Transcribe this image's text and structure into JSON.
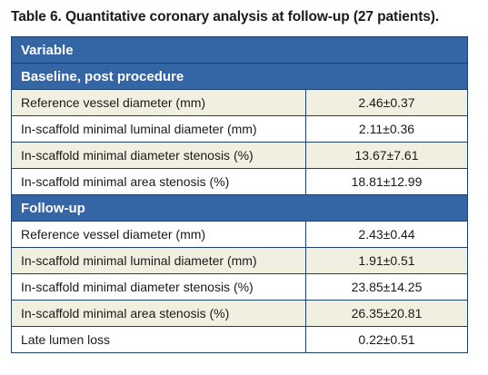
{
  "caption": "Table 6. Quantitative coronary analysis at follow-up (27 patients).",
  "table": {
    "header": "Variable",
    "sections": [
      {
        "title": "Baseline, post procedure",
        "rows": [
          {
            "variable": "Reference vessel diameter (mm)",
            "value": "2.46±0.37"
          },
          {
            "variable": "In-scaffold minimal luminal diameter (mm)",
            "value": "2.11±0.36"
          },
          {
            "variable": "In-scaffold minimal diameter stenosis (%)",
            "value": "13.67±7.61"
          },
          {
            "variable": "In-scaffold minimal area stenosis (%)",
            "value": "18.81±12.99"
          }
        ]
      },
      {
        "title": "Follow-up",
        "rows": [
          {
            "variable": "Reference vessel diameter (mm)",
            "value": "2.43±0.44"
          },
          {
            "variable": "In-scaffold minimal luminal diameter (mm)",
            "value": "1.91±0.51"
          },
          {
            "variable": "In-scaffold minimal diameter stenosis (%)",
            "value": "23.85±14.25"
          },
          {
            "variable": "In-scaffold minimal area stenosis (%)",
            "value": "26.35±20.81"
          },
          {
            "variable": "Late lumen loss",
            "value": "0.22±0.51"
          }
        ]
      }
    ]
  },
  "colors": {
    "header_bg": "#3465a4",
    "shaded_row_bg": "#f1efe0",
    "border": "#1f3f6e"
  }
}
